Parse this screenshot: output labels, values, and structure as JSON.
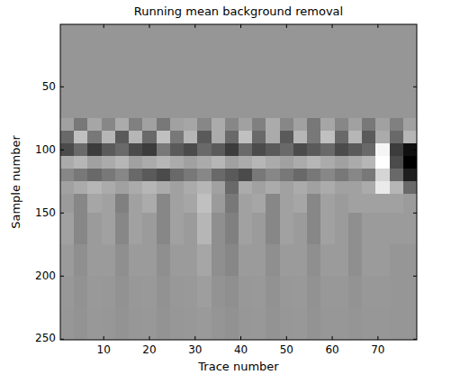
{
  "chart_data": {
    "type": "heatmap",
    "title": "Running mean background removal",
    "x_label": "Trace number",
    "y_label": "Sample number",
    "color": "gray",
    "xlim": [
      0.5,
      78.5
    ],
    "ylim": [
      0.5,
      250.5
    ],
    "xticks": [
      10,
      20,
      30,
      40,
      50,
      60,
      70
    ],
    "yticks": [
      50,
      100,
      150,
      200,
      250
    ],
    "color_range": [
      -1,
      1
    ],
    "x_bins": [
      0.5,
      3.5,
      6.5,
      9.5,
      12.5,
      15.5,
      18.5,
      21.5,
      24.5,
      27.5,
      30.5,
      33.5,
      36.5,
      39.5,
      42.5,
      45.5,
      48.5,
      51.5,
      54.5,
      57.5,
      60.5,
      63.5,
      66.5,
      69.5,
      72.5,
      75.5,
      78.5
    ],
    "y_bins": [
      0.5,
      75,
      85,
      95,
      105,
      115,
      125,
      135,
      150,
      175,
      200,
      225,
      250.5
    ],
    "cells": [
      [
        0,
        0,
        0,
        0,
        0,
        0,
        0,
        0,
        0,
        0,
        0,
        0,
        0,
        0,
        0,
        0,
        0,
        0,
        0,
        0,
        0,
        0,
        0,
        0,
        0,
        0
      ],
      [
        0.1,
        -0.2,
        0.15,
        -0.1,
        0.2,
        -0.15,
        0.1,
        -0.2,
        0.1,
        0.15,
        -0.1,
        0.2,
        -0.1,
        0.1,
        -0.15,
        0.2,
        -0.1,
        0.1,
        -0.2,
        0.15,
        -0.1,
        0.1,
        -0.2,
        0.1,
        -0.15,
        0.1
      ],
      [
        -0.3,
        0.4,
        -0.2,
        0.3,
        -0.4,
        0.3,
        -0.3,
        0.4,
        -0.2,
        0.3,
        -0.4,
        0.2,
        -0.3,
        0.4,
        -0.3,
        0.2,
        -0.4,
        0.3,
        -0.2,
        0.4,
        -0.3,
        0.3,
        -0.4,
        0.2,
        -0.3,
        0.3
      ],
      [
        -0.5,
        -0.3,
        -0.6,
        -0.4,
        -0.3,
        -0.5,
        -0.6,
        -0.2,
        -0.4,
        -0.5,
        -0.3,
        -0.4,
        -0.6,
        -0.3,
        -0.5,
        -0.4,
        -0.3,
        -0.5,
        -0.4,
        -0.3,
        -0.5,
        -0.4,
        -0.3,
        0.9,
        -0.6,
        -0.9
      ],
      [
        0.2,
        0.3,
        0.1,
        0.2,
        0.3,
        0.1,
        0.2,
        0.3,
        0.2,
        0.1,
        0.2,
        0.3,
        0.1,
        0.2,
        0.3,
        0.2,
        0.1,
        0.2,
        0.3,
        0.2,
        0.1,
        0.2,
        0.3,
        1.0,
        -0.5,
        -1.0
      ],
      [
        -0.1,
        -0.2,
        -0.3,
        -0.2,
        -0.1,
        -0.3,
        -0.4,
        -0.5,
        -0.3,
        -0.2,
        -0.1,
        -0.3,
        -0.4,
        -0.5,
        -0.2,
        -0.1,
        -0.2,
        -0.3,
        -0.2,
        -0.1,
        -0.2,
        -0.1,
        -0.2,
        0.6,
        -0.3,
        -0.8
      ],
      [
        0.1,
        0.2,
        0.3,
        0.2,
        0.1,
        0.2,
        0.3,
        0.2,
        0.1,
        0.2,
        0.3,
        0.1,
        -0.3,
        0.2,
        0.1,
        0.2,
        0.1,
        0.2,
        0.1,
        0.2,
        0.1,
        0.1,
        0.2,
        0.8,
        0.3,
        -0.3
      ],
      [
        0.05,
        -0.1,
        0.15,
        0.1,
        -0.15,
        0.1,
        0.2,
        -0.1,
        0.1,
        0.15,
        0.4,
        0.05,
        -0.2,
        0.1,
        0.15,
        -0.1,
        0.1,
        0.15,
        -0.1,
        0.1,
        0.05,
        0.1,
        0.1,
        0.1,
        0.1,
        0.05
      ],
      [
        0.1,
        -0.1,
        0.05,
        0.1,
        -0.1,
        0.1,
        0.05,
        -0.1,
        0.1,
        0.05,
        0.3,
        -0.05,
        -0.15,
        0.1,
        0.05,
        -0.1,
        0.1,
        0.05,
        -0.1,
        0.1,
        0.05,
        -0.05,
        0.05,
        0.05,
        0.05,
        0.05
      ],
      [
        0.05,
        -0.05,
        0.05,
        0.05,
        -0.05,
        0.05,
        0.05,
        -0.05,
        0.05,
        0.05,
        0.15,
        -0.05,
        -0.1,
        0.05,
        0.05,
        -0.05,
        0.05,
        0.05,
        -0.05,
        0.05,
        0.05,
        -0.05,
        0.05,
        0.05,
        0,
        0
      ],
      [
        0.02,
        -0.03,
        0.03,
        0.02,
        -0.03,
        0.02,
        0.03,
        -0.03,
        0.02,
        0.03,
        0.08,
        -0.02,
        -0.05,
        0.02,
        0.03,
        -0.03,
        0.02,
        0.03,
        -0.03,
        0.02,
        0.02,
        -0.02,
        0.02,
        0.02,
        0,
        0
      ],
      [
        0.01,
        -0.02,
        0.02,
        0.01,
        -0.02,
        0.01,
        0.02,
        -0.02,
        0.01,
        0.02,
        0.04,
        -0.01,
        -0.03,
        0.01,
        0.02,
        -0.02,
        0.01,
        0.02,
        -0.02,
        0.01,
        0.01,
        -0.01,
        0.01,
        0.01,
        0,
        0
      ]
    ]
  }
}
